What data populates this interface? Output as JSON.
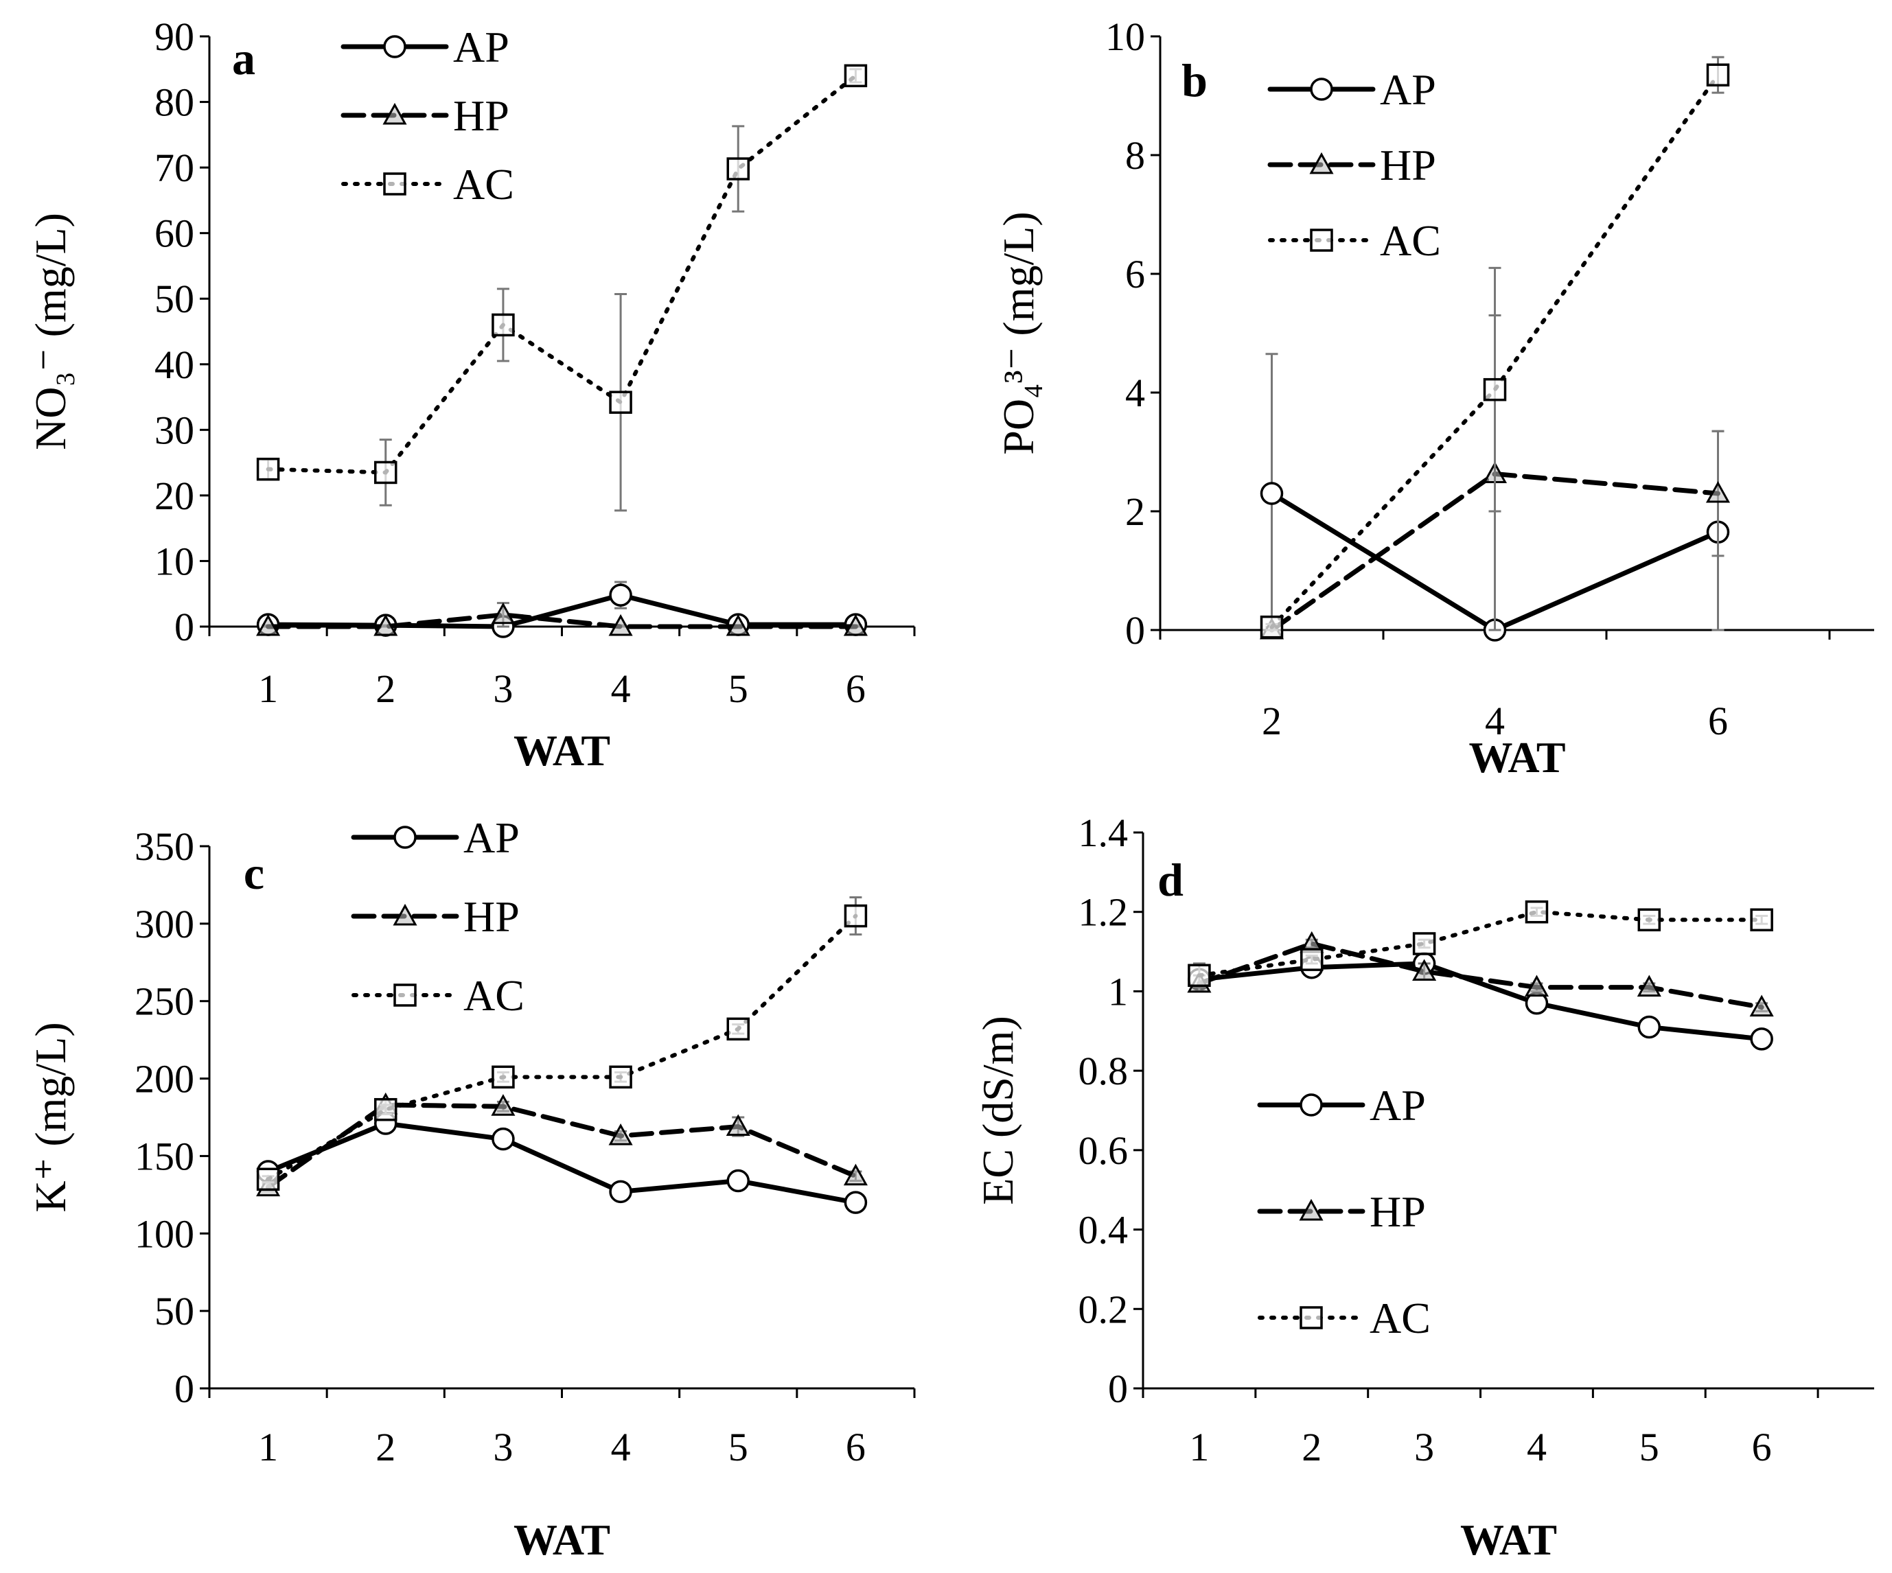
{
  "figure_description": "Four-panel line chart of drainage solution properties by weeks after transplanting (WAT)",
  "chart_data": [
    {
      "type": "line",
      "panel": "a",
      "title": "",
      "xlabel": "WAT",
      "ylabel": "NO₃⁻ (mg/L)",
      "x": [
        1,
        2,
        3,
        4,
        5,
        6
      ],
      "xticks": [
        "1",
        "2",
        "3",
        "4",
        "5",
        "6"
      ],
      "ylim": [
        0,
        90
      ],
      "yticks": [
        0,
        10,
        20,
        30,
        40,
        50,
        60,
        70,
        80,
        90
      ],
      "legend_position": "top-center",
      "series": [
        {
          "name": "AP",
          "values": [
            0.3,
            0.2,
            0.0,
            4.8,
            0.3,
            0.3
          ],
          "errors": [
            0.3,
            0.3,
            0.3,
            2.0,
            0.3,
            0.3
          ],
          "style": "solid",
          "marker": "circle"
        },
        {
          "name": "HP",
          "values": [
            0.0,
            0.0,
            1.8,
            0.0,
            0.0,
            0.0
          ],
          "errors": [
            0.2,
            0.2,
            1.8,
            0.2,
            0.2,
            0.2
          ],
          "style": "dashed",
          "marker": "triangle"
        },
        {
          "name": "AC",
          "values": [
            24.0,
            23.5,
            46.0,
            34.2,
            69.8,
            84.0
          ],
          "errors": [
            1.5,
            5.0,
            5.5,
            16.5,
            6.5,
            1.0
          ],
          "style": "dotted",
          "marker": "square"
        }
      ]
    },
    {
      "type": "line",
      "panel": "b",
      "title": "",
      "xlabel": "WAT",
      "ylabel": "PO₄³⁻ (mg/L)",
      "x": [
        2,
        4,
        6
      ],
      "xticks": [
        "2",
        "4",
        "6"
      ],
      "ylim": [
        0,
        10
      ],
      "yticks": [
        0,
        2,
        4,
        6,
        8,
        10
      ],
      "legend_position": "top-center",
      "series": [
        {
          "name": "AP",
          "values": [
            2.3,
            0.0,
            1.65
          ],
          "errors": [
            2.35,
            0.05,
            1.7
          ],
          "style": "solid",
          "marker": "circle"
        },
        {
          "name": "HP",
          "values": [
            0.0,
            2.63,
            2.3
          ],
          "errors": [
            0.05,
            2.67,
            1.05
          ],
          "style": "dashed",
          "marker": "triangle"
        },
        {
          "name": "AC",
          "values": [
            0.05,
            4.05,
            9.35
          ],
          "errors": [
            0.05,
            2.05,
            0.3
          ],
          "style": "dotted",
          "marker": "square"
        }
      ]
    },
    {
      "type": "line",
      "panel": "c",
      "title": "",
      "xlabel": "WAT",
      "ylabel": "K⁺ (mg/L)",
      "x": [
        1,
        2,
        3,
        4,
        5,
        6
      ],
      "xticks": [
        "1",
        "2",
        "3",
        "4",
        "5",
        "6"
      ],
      "ylim": [
        0,
        350
      ],
      "yticks": [
        0,
        50,
        100,
        150,
        200,
        250,
        300,
        350
      ],
      "legend_position": "top-center",
      "series": [
        {
          "name": "AP",
          "values": [
            140,
            171,
            161,
            127,
            134,
            120
          ],
          "errors": [
            2,
            3,
            3,
            3,
            4,
            3
          ],
          "style": "solid",
          "marker": "circle"
        },
        {
          "name": "HP",
          "values": [
            130,
            183,
            182,
            163,
            169,
            137
          ],
          "errors": [
            2,
            3,
            3,
            3,
            6,
            3
          ],
          "style": "dashed",
          "marker": "triangle"
        },
        {
          "name": "AC",
          "values": [
            135,
            180,
            201,
            201,
            232,
            305
          ],
          "errors": [
            2,
            3,
            3,
            3,
            3,
            12
          ],
          "style": "dotted",
          "marker": "square"
        }
      ]
    },
    {
      "type": "line",
      "panel": "d",
      "title": "",
      "xlabel": "WAT",
      "ylabel": "EC (dS/m)",
      "x": [
        1,
        2,
        3,
        4,
        5,
        6
      ],
      "xticks": [
        "1",
        "2",
        "3",
        "4",
        "5",
        "6"
      ],
      "ylim": [
        0,
        1.4
      ],
      "yticks": [
        "0",
        "0.2",
        "0.4",
        "0.6",
        "0.8",
        "1",
        "1.2",
        "1.4"
      ],
      "legend_position": "center-left",
      "series": [
        {
          "name": "AP",
          "values": [
            1.03,
            1.06,
            1.07,
            0.97,
            0.91,
            0.88
          ],
          "errors": [
            0.02,
            0.01,
            0.01,
            0.01,
            0.01,
            0.01
          ],
          "style": "solid",
          "marker": "circle"
        },
        {
          "name": "HP",
          "values": [
            1.02,
            1.12,
            1.05,
            1.01,
            1.01,
            0.96
          ],
          "errors": [
            0.02,
            0.01,
            0.02,
            0.01,
            0.01,
            0.01
          ],
          "style": "dashed",
          "marker": "triangle"
        },
        {
          "name": "AC",
          "values": [
            1.04,
            1.08,
            1.12,
            1.2,
            1.18,
            1.18
          ],
          "errors": [
            0.03,
            0.01,
            0.01,
            0.01,
            0.01,
            0.01
          ],
          "style": "dotted",
          "marker": "square"
        }
      ]
    }
  ]
}
